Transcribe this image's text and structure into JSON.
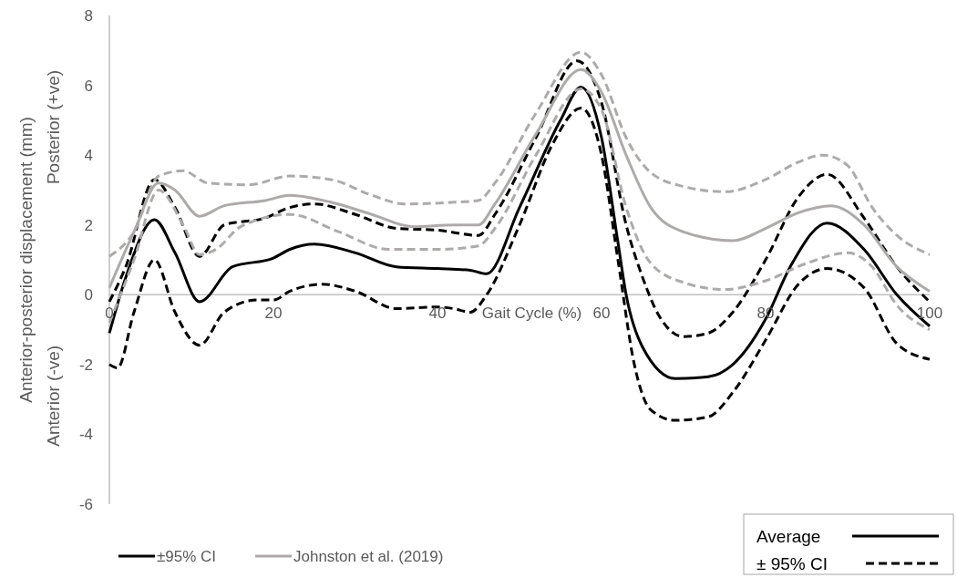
{
  "chart_data": {
    "type": "line",
    "xlabel": "Gait Cycle (%)",
    "ylabel": "Anterior-posterior displacement (mm)",
    "annotations": [
      "Anterior (-ve)",
      "Posterior (+ve)",
      "Average",
      "± 95% CI"
    ],
    "xlim": [
      0,
      100
    ],
    "xticks": [
      0,
      20,
      40,
      60,
      80,
      100
    ],
    "ylim": [
      -6,
      8
    ],
    "yticks": [
      -6,
      -4,
      -2,
      0,
      2,
      4,
      6,
      8
    ],
    "grid": false,
    "legend": "bottom",
    "series": [
      {
        "name": "±95% CI",
        "color": "#000000",
        "line_style": "solid",
        "x": [
          0,
          2,
          5.5,
          8,
          11,
          15,
          20,
          22,
          25,
          30,
          35,
          40,
          44,
          46,
          50,
          55,
          57.5,
          60,
          62,
          63,
          65,
          69,
          73,
          76,
          80,
          83,
          87.5,
          92,
          96,
          100
        ],
        "values": [
          -1.1,
          0.5,
          2.15,
          1.2,
          -0.2,
          0.8,
          1.05,
          1.3,
          1.45,
          1.2,
          0.8,
          0.75,
          0.7,
          0.6,
          2.5,
          5,
          5.95,
          4.5,
          1.5,
          0,
          -1.5,
          -2.4,
          -2.35,
          -2,
          -0.7,
          0.8,
          2.05,
          1.3,
          0,
          -0.9
        ]
      },
      {
        "color": "#000000",
        "line_style": "dashed",
        "x": [
          0,
          2,
          5.5,
          8,
          11,
          14,
          19,
          22,
          25,
          30,
          35,
          40,
          45,
          47,
          52,
          57,
          60,
          63,
          65,
          67,
          70,
          73,
          76,
          80,
          84,
          87.5,
          92,
          96,
          100
        ],
        "values": [
          -0.2,
          0.8,
          3.3,
          2.5,
          1.1,
          2.0,
          2.2,
          2.5,
          2.6,
          2.3,
          1.9,
          1.85,
          1.7,
          2.3,
          4.5,
          6.7,
          5.5,
          2,
          0.5,
          -0.6,
          -1.2,
          -1.1,
          -0.5,
          1,
          2.8,
          3.45,
          2.2,
          0.8,
          -0.2
        ]
      },
      {
        "color": "#000000",
        "line_style": "dashed",
        "x": [
          0,
          1,
          3,
          5.5,
          8,
          11,
          14,
          18,
          20,
          22,
          26,
          30,
          35,
          40,
          42,
          44,
          46,
          50,
          54,
          57.5,
          60,
          62,
          64,
          66,
          69,
          73,
          76,
          80,
          84,
          87.5,
          92,
          96,
          100
        ],
        "values": [
          -2.0,
          -2.1,
          -0.5,
          1.0,
          -0.5,
          -1.45,
          -0.5,
          -0.15,
          -0.15,
          0.1,
          0.3,
          0.1,
          -0.4,
          -0.35,
          -0.4,
          -0.5,
          0,
          2,
          4.3,
          5.35,
          4.0,
          1,
          -2,
          -3.3,
          -3.6,
          -3.5,
          -2.8,
          -1.3,
          0.3,
          0.75,
          0.2,
          -1.4,
          -1.85
        ]
      },
      {
        "name": "Johnston et al. (2019)",
        "color": "#aeaaaa",
        "line_style": "solid",
        "x": [
          0,
          3,
          6,
          8,
          11,
          14,
          19,
          22,
          27,
          32,
          37,
          42,
          45,
          47,
          52,
          57.5,
          60,
          63,
          66,
          70,
          76,
          80,
          84,
          88,
          92,
          96,
          100
        ],
        "values": [
          0.2,
          1.8,
          3.2,
          3.0,
          2.25,
          2.55,
          2.7,
          2.85,
          2.65,
          2.3,
          1.95,
          2.0,
          2.0,
          2.6,
          4.6,
          6.45,
          5.8,
          4,
          2.5,
          1.8,
          1.55,
          1.9,
          2.35,
          2.55,
          2.0,
          0.8,
          0.1
        ]
      },
      {
        "color": "#aeaaaa",
        "line_style": "dashed",
        "x": [
          0,
          3,
          6,
          9,
          12,
          17,
          22,
          27,
          32,
          36,
          42,
          45,
          47,
          52,
          57.5,
          60,
          63,
          66,
          70,
          75,
          80,
          84,
          87,
          90,
          93,
          96,
          100
        ],
        "values": [
          1.1,
          1.8,
          3.4,
          3.55,
          3.2,
          3.15,
          3.4,
          3.3,
          2.85,
          2.6,
          2.65,
          2.7,
          3.2,
          5.2,
          6.95,
          6.3,
          4.5,
          3.5,
          3.1,
          2.95,
          3.3,
          3.8,
          4.0,
          3.7,
          2.5,
          1.7,
          1.15
        ]
      },
      {
        "color": "#aeaaaa",
        "line_style": "dashed",
        "x": [
          0,
          3,
          6,
          9,
          11,
          13,
          16,
          22,
          28,
          34,
          40,
          45,
          47,
          52,
          57.5,
          60,
          63,
          66,
          70,
          75,
          80,
          85,
          90,
          93,
          96,
          100
        ],
        "values": [
          -0.8,
          1.0,
          3.0,
          2.0,
          1.15,
          1.3,
          1.95,
          2.3,
          1.8,
          1.3,
          1.3,
          1.4,
          1.9,
          4.0,
          5.9,
          5.3,
          2.5,
          0.9,
          0.35,
          0.15,
          0.4,
          0.9,
          1.2,
          0.8,
          -0.3,
          -1.0
        ]
      }
    ]
  }
}
